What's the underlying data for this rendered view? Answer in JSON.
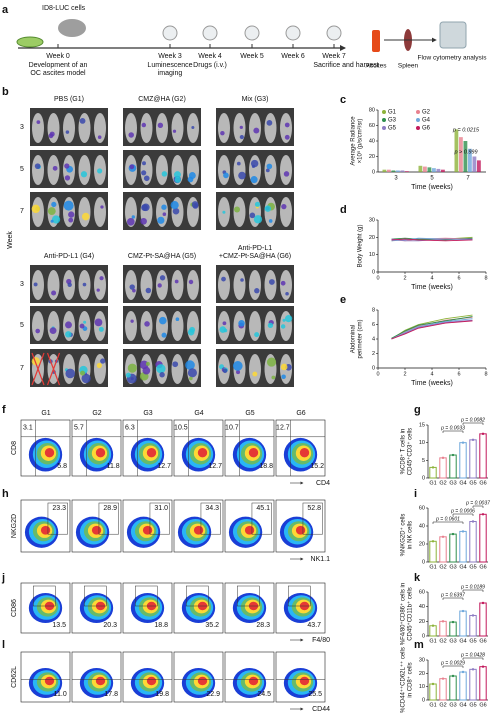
{
  "panel_labels": [
    "a",
    "b",
    "c",
    "d",
    "e",
    "f",
    "g",
    "h",
    "i",
    "j",
    "k",
    "l",
    "m"
  ],
  "timeline": {
    "cells": "ID8-LUC cells",
    "steps": [
      {
        "week": "Week 0",
        "desc": [
          "Development of an",
          "OC ascites model"
        ]
      },
      {
        "week": "Week 3",
        "desc": [
          "Luminescence",
          "imaging"
        ]
      },
      {
        "week": "Week 4",
        "desc": [
          "Drugs (i.v.)"
        ]
      },
      {
        "week": "Week 5",
        "desc": []
      },
      {
        "week": "Week 6",
        "desc": []
      },
      {
        "week": "Week 7",
        "desc": [
          "Sacrifice and harvest"
        ]
      }
    ],
    "ascites": "Ascites",
    "spleen": "Spleen",
    "flow": "Flow cytometry analysis"
  },
  "imaging": {
    "axis_label": "Week",
    "rows": [
      "3",
      "5",
      "7"
    ],
    "groups": [
      [
        "PBS (G1)"
      ],
      [
        "CMZ@HA (G2)"
      ],
      [
        "Mix (G3)"
      ],
      [
        "Anti-PD-L1 (G4)"
      ],
      [
        "CMZ-Pt-SA@HA (G5)"
      ],
      [
        "Anti-PD-L1",
        "+CMZ-Pt-SA@HA (G6)"
      ]
    ]
  },
  "groups": [
    "G1",
    "G2",
    "G3",
    "G4",
    "G5",
    "G6"
  ],
  "group_colors": [
    "#8db33a",
    "#e8818f",
    "#2f8f4e",
    "#6fa8dc",
    "#8e7cc3",
    "#c2185b"
  ],
  "charts": {
    "c": {
      "type": "grouped_bar",
      "y_label": [
        "Average Radiance",
        "×10⁵ (p/s/cm²/sr)"
      ],
      "x_label": "Time (weeks)",
      "categories": [
        "3",
        "5",
        "7"
      ],
      "ylim": [
        0,
        80
      ],
      "yticks": [
        0,
        20,
        40,
        60,
        80
      ],
      "series": [
        {
          "name": "G1",
          "values": [
            3,
            8,
            55
          ]
        },
        {
          "name": "G2",
          "values": [
            3,
            7,
            45
          ]
        },
        {
          "name": "G3",
          "values": [
            2,
            6,
            40
          ]
        },
        {
          "name": "G4",
          "values": [
            2,
            5,
            30
          ]
        },
        {
          "name": "G5",
          "values": [
            2,
            4,
            20
          ]
        },
        {
          "name": "G6",
          "values": [
            1,
            3,
            15
          ]
        }
      ],
      "annotations": [
        "p = 0.0215",
        "p > 0.999"
      ]
    },
    "d": {
      "type": "line",
      "y_label": [
        "Body Weight (g)"
      ],
      "x_label": "Time (weeks)",
      "x": [
        1,
        2,
        3,
        5,
        7
      ],
      "xlim": [
        0,
        8
      ],
      "xticks": [
        0,
        2,
        4,
        6,
        8
      ],
      "ylim": [
        0,
        30
      ],
      "yticks": [
        0,
        10,
        20,
        30
      ],
      "series": [
        {
          "values": [
            18,
            19,
            18.5,
            19,
            20
          ]
        },
        {
          "values": [
            18.5,
            18,
            19,
            19.5,
            19
          ]
        },
        {
          "values": [
            19,
            19.5,
            19,
            18.5,
            19.5
          ]
        },
        {
          "values": [
            18,
            18.5,
            19.5,
            19,
            18.5
          ]
        },
        {
          "values": [
            19,
            18,
            18,
            19,
            19
          ]
        },
        {
          "values": [
            18.5,
            19,
            18.5,
            18,
            18.5
          ]
        }
      ]
    },
    "e": {
      "type": "line",
      "y_label": [
        "Abdominal",
        "perimeter (cm)"
      ],
      "x_label": "Time (weeks)",
      "x": [
        1,
        2,
        3,
        5,
        7
      ],
      "xlim": [
        0,
        8
      ],
      "xticks": [
        0,
        2,
        4,
        6,
        8
      ],
      "ylim": [
        0,
        8
      ],
      "yticks": [
        0,
        2,
        4,
        6,
        8
      ],
      "series": [
        {
          "values": [
            4,
            5.2,
            6,
            6.8,
            7.3
          ]
        },
        {
          "values": [
            4,
            5,
            5.8,
            6.6,
            7
          ]
        },
        {
          "values": [
            4.1,
            5.1,
            5.9,
            6.5,
            7.1
          ]
        },
        {
          "values": [
            4,
            4.9,
            5.7,
            6.4,
            6.8
          ]
        },
        {
          "values": [
            4,
            4.8,
            5.6,
            6.3,
            6.6
          ]
        },
        {
          "values": [
            4,
            4.7,
            5.5,
            6.2,
            6.5
          ]
        }
      ]
    },
    "g": {
      "type": "bar",
      "y_label": [
        "%CD8⁺ T cells in",
        "CD45⁺CD3⁺ cells"
      ],
      "categories": [
        "G1",
        "G2",
        "G3",
        "G4",
        "G5",
        "G6"
      ],
      "values": [
        3,
        5.7,
        6.5,
        10,
        10.8,
        12.5
      ],
      "ylim": [
        0,
        15
      ],
      "yticks": [
        0,
        5,
        10,
        15
      ],
      "annotations": [
        "p = 0.0033",
        "p = 0.0082"
      ]
    },
    "i": {
      "type": "bar",
      "y_label": [
        "%NKG2D⁺ cells",
        "in NK cells"
      ],
      "categories": [
        "G1",
        "G2",
        "G3",
        "G4",
        "G5",
        "G6"
      ],
      "values": [
        23,
        28,
        31,
        34,
        45,
        53
      ],
      "ylim": [
        0,
        60
      ],
      "yticks": [
        0,
        20,
        40,
        60
      ],
      "annotations": [
        "p = 0.0601",
        "p = 0.0006",
        "p = 0.0037"
      ]
    },
    "k": {
      "type": "bar",
      "y_label": [
        "%F4/80⁺CD86⁺ cells in",
        "CD45⁺CD11b⁺ cells"
      ],
      "categories": [
        "G1",
        "G2",
        "G3",
        "G4",
        "G5",
        "G6"
      ],
      "values": [
        14,
        20,
        19,
        34,
        28,
        45
      ],
      "ylim": [
        0,
        60
      ],
      "yticks": [
        0,
        20,
        40,
        60
      ],
      "annotations": [
        "p = 0.6397",
        "p = 0.0189"
      ]
    },
    "m": {
      "type": "bar",
      "y_label": [
        "%CD44⁺⁺CD62L⁺⁺ cells",
        "in CD8⁺ cells"
      ],
      "categories": [
        "G1",
        "G2",
        "G3",
        "G4",
        "G5",
        "G6"
      ],
      "values": [
        12,
        16,
        18,
        21,
        23,
        25
      ],
      "ylim": [
        0,
        30
      ],
      "yticks": [
        0,
        10,
        20,
        30
      ],
      "annotations": [
        "p = 0.0029",
        "p = 0.0428"
      ]
    }
  },
  "flow": [
    {
      "x_label": "CD4",
      "y_label": "CD8",
      "labels": [
        [
          "3.1",
          "5.8"
        ],
        [
          "5.7",
          "11.8"
        ],
        [
          "6.3",
          "12.7"
        ],
        [
          "10.5",
          "12.7"
        ],
        [
          "10.7",
          "18.8"
        ],
        [
          "12.7",
          "15.2"
        ]
      ]
    },
    {
      "x_label": "NK1.1",
      "y_label": "NKG2D",
      "labels": [
        [
          "23.3"
        ],
        [
          "28.9"
        ],
        [
          "31.0"
        ],
        [
          "34.3"
        ],
        [
          "45.1"
        ],
        [
          "52.8"
        ]
      ]
    },
    {
      "x_label": "F4/80",
      "y_label": "CD86",
      "labels": [
        [
          "13.5"
        ],
        [
          "20.3"
        ],
        [
          "18.8"
        ],
        [
          "35.2"
        ],
        [
          "28.3"
        ],
        [
          "43.7"
        ]
      ]
    },
    {
      "x_label": "CD44",
      "y_label": "CD62L",
      "labels": [
        [
          "11.0"
        ],
        [
          "17.8"
        ],
        [
          "19.8"
        ],
        [
          "22.9"
        ],
        [
          "24.5"
        ],
        [
          "25.5"
        ]
      ]
    }
  ]
}
